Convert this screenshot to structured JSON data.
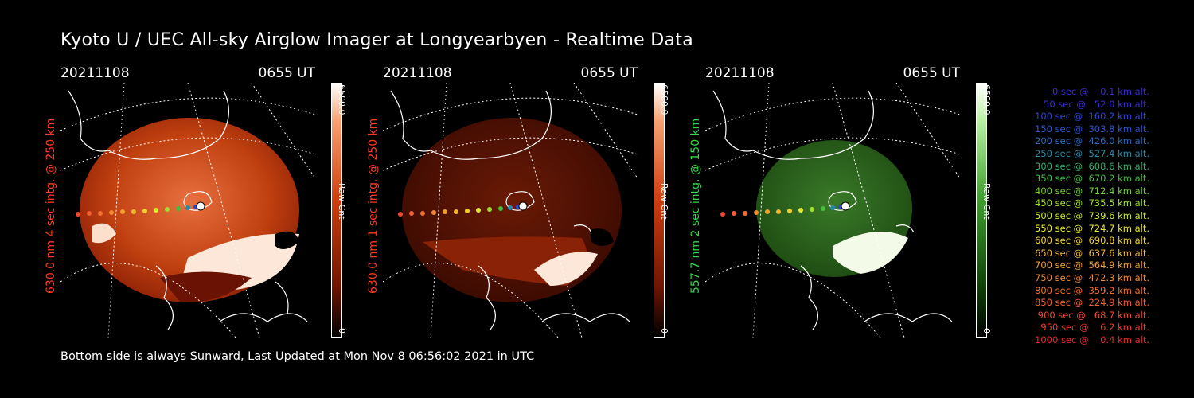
{
  "title": "Kyoto U / UEC All-sky Airglow Imager at Longyearbyen - Realtime Data",
  "footer": "Bottom side is always Sunward, Last Updated at Mon Nov  8 06:56:02 2021 in UTC",
  "colors": {
    "red_label": "#ff3b1f",
    "green_label": "#34d64a"
  },
  "panels": [
    {
      "date": "20211108",
      "time": "0655 UT",
      "ylabel": "630.0 nm 4 sec intg. @ 250 km",
      "cbar_top": "6500.0",
      "cbar_mid": "Raw Cnt",
      "cbar_bot": "0",
      "color": "red"
    },
    {
      "date": "20211108",
      "time": "0655 UT",
      "ylabel": "630.0 nm 1 sec intg. @ 250 km",
      "cbar_top": "6500.0",
      "cbar_mid": "Raw Cnt",
      "cbar_bot": "0",
      "color": "darkred"
    },
    {
      "date": "20211108",
      "time": "0655 UT",
      "ylabel": "557.7 nm 2 sec intg. @ 150 km",
      "cbar_top": "6500.0",
      "cbar_mid": "Raw Cnt",
      "cbar_bot": "0",
      "color": "green"
    }
  ],
  "legend": [
    {
      "text": "   0 sec @    0.1 km alt.",
      "color": "#3a2bd8"
    },
    {
      "text": "  50 sec @   52.0 km alt.",
      "color": "#3a2bd8"
    },
    {
      "text": " 100 sec @  160.2 km alt.",
      "color": "#2b45d8"
    },
    {
      "text": " 150 sec @  303.8 km alt.",
      "color": "#2b55d0"
    },
    {
      "text": " 200 sec @  426.0 km alt.",
      "color": "#2a6ac0"
    },
    {
      "text": " 250 sec @  527.4 km alt.",
      "color": "#2a8aa8"
    },
    {
      "text": " 300 sec @  608.6 km alt.",
      "color": "#30b070"
    },
    {
      "text": " 350 sec @  670.2 km alt.",
      "color": "#40c040"
    },
    {
      "text": " 400 sec @  712.4 km alt.",
      "color": "#70d030"
    },
    {
      "text": " 450 sec @  735.5 km alt.",
      "color": "#a0e030"
    },
    {
      "text": " 500 sec @  739.6 km alt.",
      "color": "#c8e830"
    },
    {
      "text": " 550 sec @  724.7 km alt.",
      "color": "#e8e830"
    },
    {
      "text": " 600 sec @  690.8 km alt.",
      "color": "#f0d030"
    },
    {
      "text": " 650 sec @  637.6 km alt.",
      "color": "#f0b830"
    },
    {
      "text": " 700 sec @  564.9 km alt.",
      "color": "#f0a030"
    },
    {
      "text": " 750 sec @  472.3 km alt.",
      "color": "#f08830"
    },
    {
      "text": " 800 sec @  359.2 km alt.",
      "color": "#f07030"
    },
    {
      "text": " 850 sec @  224.9 km alt.",
      "color": "#f06030"
    },
    {
      "text": " 900 sec @   68.7 km alt.",
      "color": "#f04830"
    },
    {
      "text": " 950 sec @    6.2 km alt.",
      "color": "#f03830"
    },
    {
      "text": "1000 sec @    0.4 km alt.",
      "color": "#f02828"
    }
  ]
}
